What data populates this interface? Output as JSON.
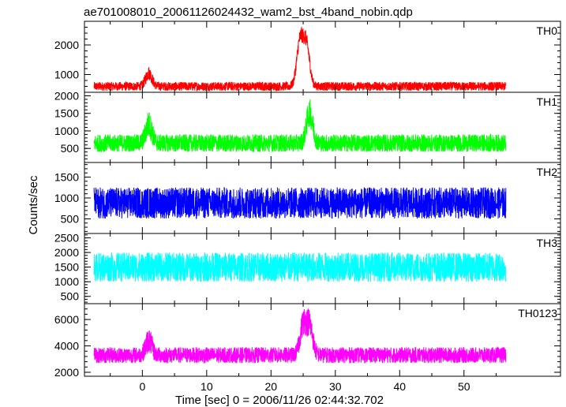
{
  "chart_data": {
    "type": "line",
    "title": "ae701008010_20061126024432_wam2_bst_4band_nobin.qdp",
    "xlabel": "Time [sec] 0 = 2006/11/26 02:44:32.702",
    "ylabel": "Counts/sec",
    "xlim": [
      -9,
      65
    ],
    "x_tick_labels": [
      "0",
      "10",
      "20",
      "30",
      "40",
      "50"
    ],
    "x_ticks": [
      0,
      10,
      20,
      30,
      40,
      50
    ],
    "x_data_range": [
      -7.5,
      56.5
    ],
    "panels": [
      {
        "name": "TH0",
        "color": "#ff0000",
        "ylim": [
          400,
          2800
        ],
        "y_ticks": [
          1000,
          2000
        ],
        "y_tick_labels": [
          "1000",
          "2000"
        ],
        "baseline_mean": 600,
        "noise_amplitude": 300,
        "features": [
          {
            "x": 1.0,
            "peak": 1350
          },
          {
            "x": 24.5,
            "peak": 2750
          },
          {
            "x": 25.5,
            "peak": 2600
          }
        ]
      },
      {
        "name": "TH1",
        "color": "#00ff00",
        "ylim": [
          100,
          2100
        ],
        "y_ticks": [
          500,
          1000,
          1500,
          2000
        ],
        "y_tick_labels": [
          "500",
          "1000",
          "1500",
          "2000"
        ],
        "baseline_mean": 650,
        "noise_amplitude": 500,
        "features": [
          {
            "x": 1.0,
            "peak": 1600
          },
          {
            "x": 26.0,
            "peak": 2050
          }
        ]
      },
      {
        "name": "TH2",
        "color": "#0000ff",
        "ylim": [
          150,
          1850
        ],
        "y_ticks": [
          500,
          1000,
          1500
        ],
        "y_tick_labels": [
          "500",
          "1000",
          "1500"
        ],
        "baseline_mean": 880,
        "noise_amplitude": 750,
        "features": []
      },
      {
        "name": "TH3",
        "color": "#00ffff",
        "ylim": [
          250,
          2650
        ],
        "y_ticks": [
          500,
          1000,
          1500,
          2000,
          2500
        ],
        "y_tick_labels": [
          "500",
          "1000",
          "1500",
          "2000",
          "2500"
        ],
        "baseline_mean": 1500,
        "noise_amplitude": 1000,
        "features": []
      },
      {
        "name": "TH0123",
        "color": "#ff00ff",
        "ylim": [
          1700,
          7200
        ],
        "y_ticks": [
          2000,
          4000,
          6000
        ],
        "y_tick_labels": [
          "2000",
          "4000",
          "6000"
        ],
        "baseline_mean": 3300,
        "noise_amplitude": 1200,
        "features": [
          {
            "x": 1.0,
            "peak": 5400
          },
          {
            "x": 25.0,
            "peak": 6900
          },
          {
            "x": 26.0,
            "peak": 6800
          }
        ]
      }
    ]
  }
}
